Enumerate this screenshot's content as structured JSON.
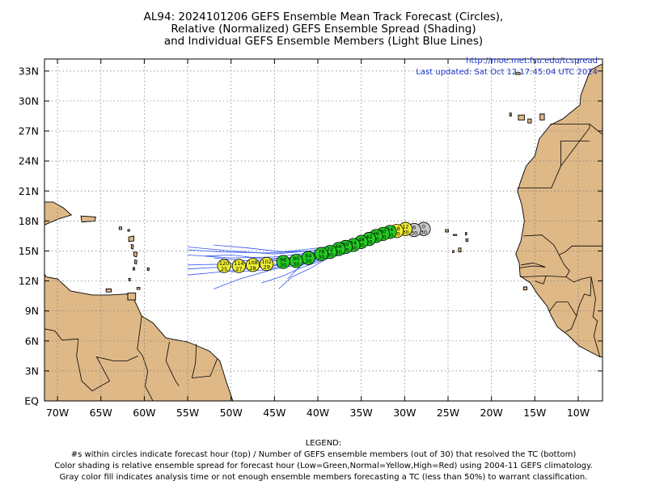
{
  "title": {
    "line1": "AL94: 2024101206 GEFS Ensemble Mean Track Forecast (Circles),",
    "line2": "Relative (Normalized) GEFS Ensemble Spread (Shading)",
    "line3": "and Individual GEFS Ensemble Members (Light Blue Lines)"
  },
  "source": {
    "url": "http://moe.met.fsu.edu/tcspread",
    "updated": "Last updated: Sat Oct 12 17:45:04 UTC 2024"
  },
  "axes": {
    "x_ticks": [
      "70W",
      "65W",
      "60W",
      "55W",
      "50W",
      "45W",
      "40W",
      "35W",
      "30W",
      "25W",
      "20W",
      "15W",
      "10W"
    ],
    "x_values": [
      -70,
      -65,
      -60,
      -55,
      -50,
      -45,
      -40,
      -35,
      -30,
      -25,
      -20,
      -15,
      -10
    ],
    "y_ticks": [
      "EQ",
      "3N",
      "6N",
      "9N",
      "12N",
      "15N",
      "18N",
      "21N",
      "24N",
      "27N",
      "30N",
      "33N"
    ],
    "y_values": [
      0,
      3,
      6,
      9,
      12,
      15,
      18,
      21,
      24,
      27,
      30,
      33
    ],
    "lon_range": [
      -71.5,
      -7.2
    ],
    "lat_range": [
      0,
      34.2
    ],
    "grid": "dotted"
  },
  "colors": {
    "land": "#deb887",
    "ocean": "#ffffff",
    "members": "#3355ee",
    "low_spread": "#22cc22",
    "normal_spread": "#eeee33",
    "analysis": "#c8c8c8"
  },
  "forecast_points": [
    {
      "hour": "0",
      "members": "30",
      "lon": -27.8,
      "lat": 17.2,
      "color": "#c8c8c8"
    },
    {
      "hour": "6",
      "members": "30",
      "lon": -28.9,
      "lat": 17.1,
      "color": "#c8c8c8"
    },
    {
      "hour": "12",
      "members": "30",
      "lon": -29.9,
      "lat": 17.2,
      "color": "#eeee33"
    },
    {
      "hour": "18",
      "members": "30",
      "lon": -30.9,
      "lat": 17.0,
      "color": "#eeee33"
    },
    {
      "hour": "24",
      "members": "30",
      "lon": -31.7,
      "lat": 16.9,
      "color": "#22cc22"
    },
    {
      "hour": "30",
      "members": "30",
      "lon": -32.5,
      "lat": 16.7,
      "color": "#22cc22"
    },
    {
      "hour": "36",
      "members": "30",
      "lon": -33.3,
      "lat": 16.5,
      "color": "#22cc22"
    },
    {
      "hour": "42",
      "members": "30",
      "lon": -34.1,
      "lat": 16.2,
      "color": "#22cc22"
    },
    {
      "hour": "48",
      "members": "30",
      "lon": -35.0,
      "lat": 15.9,
      "color": "#22cc22"
    },
    {
      "hour": "54",
      "members": "30",
      "lon": -35.9,
      "lat": 15.6,
      "color": "#22cc22"
    },
    {
      "hour": "60",
      "members": "30",
      "lon": -36.8,
      "lat": 15.4,
      "color": "#22cc22"
    },
    {
      "hour": "66",
      "members": "30",
      "lon": -37.6,
      "lat": 15.2,
      "color": "#22cc22"
    },
    {
      "hour": "72",
      "members": "30",
      "lon": -38.6,
      "lat": 14.9,
      "color": "#22cc22"
    },
    {
      "hour": "78",
      "members": "30",
      "lon": -39.6,
      "lat": 14.7,
      "color": "#22cc22"
    },
    {
      "hour": "84",
      "members": "30",
      "lon": -41.1,
      "lat": 14.3,
      "color": "#22cc22"
    },
    {
      "hour": "90",
      "members": "30",
      "lon": -42.5,
      "lat": 14.0,
      "color": "#22cc22"
    },
    {
      "hour": "96",
      "members": "30",
      "lon": -44.0,
      "lat": 13.9,
      "color": "#22cc22"
    },
    {
      "hour": "102",
      "members": "29",
      "lon": -45.9,
      "lat": 13.7,
      "color": "#eeee33"
    },
    {
      "hour": "108",
      "members": "28",
      "lon": -47.5,
      "lat": 13.6,
      "color": "#eeee33"
    },
    {
      "hour": "114",
      "members": "27",
      "lon": -49.1,
      "lat": 13.5,
      "color": "#eeee33"
    },
    {
      "hour": "120",
      "members": "25",
      "lon": -50.8,
      "lat": 13.5,
      "color": "#eeee33"
    }
  ],
  "legend": {
    "heading": "LEGEND:",
    "line1": "#s within circles indicate forecast hour (top) / Number of GEFS ensemble members (out of 30) that resolved the TC (bottom)",
    "line2": "Color shading is relative ensemble spread for forecast hour (Low=Green,Normal=Yellow,High=Red) using 2004-11 GEFS climatology.",
    "line3": "Gray color fill indicates analysis time or not enough ensemble members forecasting a TC (less than 50%) to warrant classification."
  }
}
